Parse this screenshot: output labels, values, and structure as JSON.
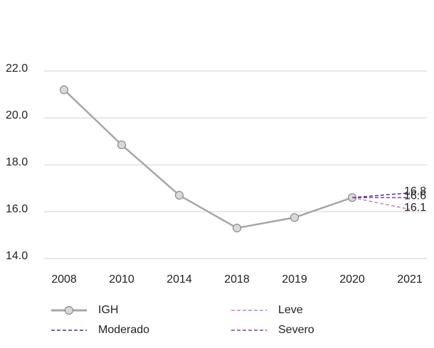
{
  "chart_data": {
    "type": "line",
    "categories": [
      "2008",
      "2010",
      "2014",
      "2018",
      "2019",
      "2020",
      "2021"
    ],
    "series": [
      {
        "name": "IGH",
        "color": "#a6a6a6",
        "values": [
          21.2,
          18.85,
          16.7,
          15.3,
          15.75,
          16.6,
          null
        ],
        "marker": "circle"
      },
      {
        "name": "Leve",
        "color": "#c97fc9",
        "values": [
          null,
          null,
          null,
          null,
          null,
          16.6,
          16.1
        ],
        "dashed": true,
        "labels": true
      },
      {
        "name": "Moderado",
        "color": "#3d3d8f",
        "values": [
          null,
          null,
          null,
          null,
          null,
          16.6,
          16.8
        ],
        "dashed": true,
        "labels": true
      },
      {
        "name": "Severo",
        "color": "#8a3fa8",
        "values": [
          null,
          null,
          null,
          null,
          null,
          16.6,
          16.6
        ],
        "dashed": true,
        "labels": true
      }
    ],
    "ylim": [
      14,
      22
    ],
    "yticks": [
      {
        "value": 14,
        "label": "14.0"
      },
      {
        "value": 16,
        "label": "16.0"
      },
      {
        "value": 18,
        "label": "18.0"
      },
      {
        "value": 20,
        "label": "20.0"
      },
      {
        "value": 22,
        "label": "22.0"
      }
    ],
    "grid": true
  }
}
